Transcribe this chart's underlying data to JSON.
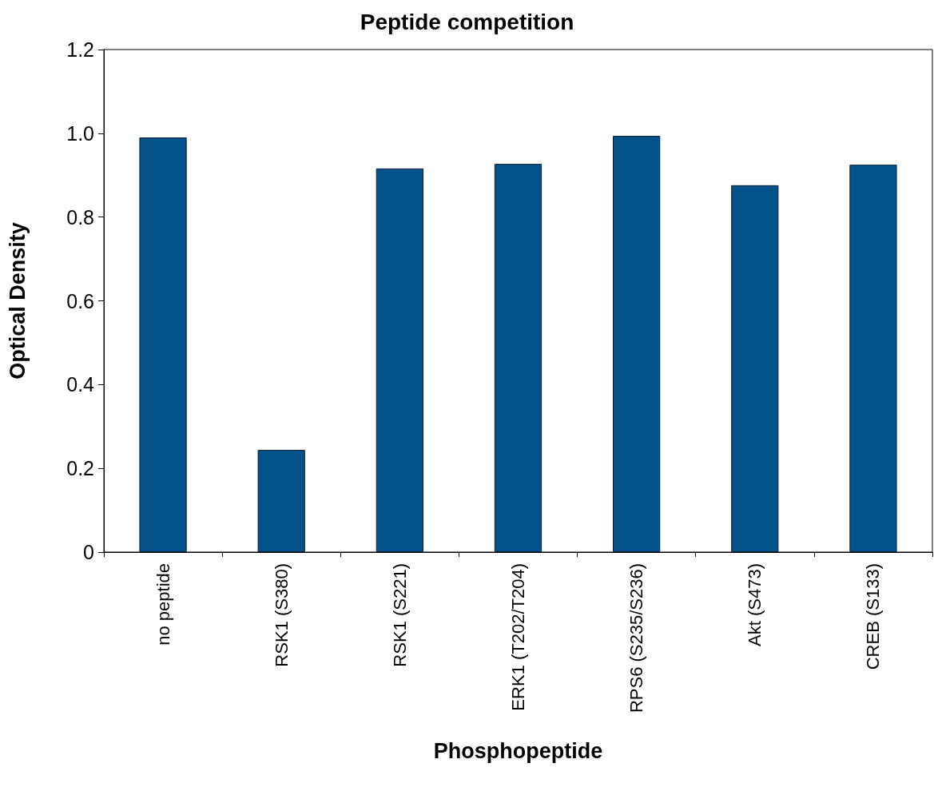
{
  "chart_data": {
    "type": "bar",
    "title": "Peptide competition",
    "xlabel": "Phosphopeptide",
    "ylabel": "Optical Density",
    "categories": [
      "no peptide",
      "RSK1 (S380)",
      "RSK1 (S221)",
      "ERK1 (T202/T204)",
      "RPS6 (S235/S236)",
      "Akt (S473)",
      "CREB (S133)"
    ],
    "values": [
      0.99,
      0.244,
      0.916,
      0.927,
      0.994,
      0.876,
      0.925
    ],
    "color": "#03528a",
    "ylim": [
      0,
      1.2
    ],
    "yticks": [
      {
        "value": 0,
        "label": "0"
      },
      {
        "value": 0.2,
        "label": "0.2"
      },
      {
        "value": 0.4,
        "label": "0.4"
      },
      {
        "value": 0.6,
        "label": "0.6"
      },
      {
        "value": 0.8,
        "label": "0.8"
      },
      {
        "value": 1.0,
        "label": "1.0"
      },
      {
        "value": 1.2,
        "label": "1.2"
      }
    ],
    "grid": false
  }
}
